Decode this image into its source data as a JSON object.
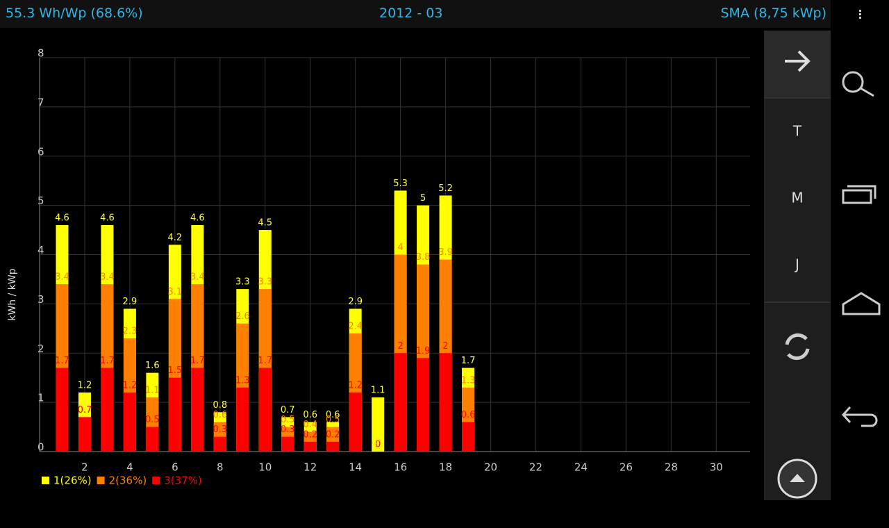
{
  "header": {
    "left": "55.3 Wh/Wp (68.6%)",
    "center": "2012 - 03",
    "right": "SMA (8,75 kWp)"
  },
  "sidebar": {
    "buttons": [
      "T",
      "M",
      "J"
    ]
  },
  "chart_data": {
    "type": "bar",
    "y_label": "kWh / kWp",
    "x": [
      1,
      2,
      3,
      4,
      5,
      6,
      7,
      8,
      9,
      10,
      11,
      12,
      13,
      14,
      15,
      16,
      17,
      18,
      19
    ],
    "xlim": [
      0,
      31.5
    ],
    "xticks": [
      2,
      4,
      6,
      8,
      10,
      12,
      14,
      16,
      18,
      20,
      22,
      24,
      26,
      28,
      30
    ],
    "ylim": [
      0,
      8
    ],
    "yticks": [
      0,
      1,
      2,
      3,
      4,
      5,
      6,
      7,
      8
    ],
    "grid": true,
    "legend": "bottom-left",
    "series": [
      {
        "name": "1(26%)",
        "color": "#ffff00",
        "values": [
          4.6,
          1.2,
          4.6,
          2.9,
          1.6,
          4.2,
          4.6,
          0.8,
          3.3,
          4.5,
          0.7,
          0.6,
          0.6,
          2.9,
          1.1,
          5.3,
          5,
          5.2,
          1.7
        ]
      },
      {
        "name": "2(36%)",
        "color": "#ff8000",
        "values": [
          3.4,
          0.7,
          3.4,
          2.3,
          1.1,
          3.1,
          3.4,
          0.6,
          2.6,
          3.3,
          0.5,
          0.4,
          0.5,
          2.4,
          null,
          4,
          3.8,
          3.9,
          1.3
        ]
      },
      {
        "name": "3(37%)",
        "color": "#ff0000",
        "values": [
          1.7,
          0.7,
          1.7,
          1.2,
          0.5,
          1.5,
          1.7,
          0.3,
          1.3,
          1.7,
          0.3,
          0.2,
          0.2,
          1.2,
          0,
          2,
          1.9,
          2,
          0.6
        ]
      }
    ]
  }
}
